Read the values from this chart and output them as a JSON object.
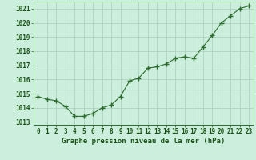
{
  "x": [
    0,
    1,
    2,
    3,
    4,
    5,
    6,
    7,
    8,
    9,
    10,
    11,
    12,
    13,
    14,
    15,
    16,
    17,
    18,
    19,
    20,
    21,
    22,
    23
  ],
  "y": [
    1014.8,
    1014.6,
    1014.5,
    1014.1,
    1013.4,
    1013.4,
    1013.6,
    1014.0,
    1014.2,
    1014.8,
    1015.9,
    1016.1,
    1016.8,
    1016.9,
    1017.1,
    1017.5,
    1017.6,
    1017.5,
    1018.3,
    1019.1,
    1020.0,
    1020.5,
    1021.0,
    1021.2
  ],
  "line_color": "#2d6a2d",
  "marker_color": "#2d6a2d",
  "bg_color": "#cceedd",
  "grid_color": "#aaccbb",
  "title": "Graphe pression niveau de la mer (hPa)",
  "ylabel_ticks": [
    1013,
    1014,
    1015,
    1016,
    1017,
    1018,
    1019,
    1020,
    1021
  ],
  "ylim": [
    1012.8,
    1021.5
  ],
  "xlim": [
    -0.5,
    23.5
  ],
  "title_color": "#1a5216",
  "title_fontsize": 6.5,
  "tick_fontsize": 5.5,
  "marker_size": 2.5,
  "linewidth": 0.8
}
